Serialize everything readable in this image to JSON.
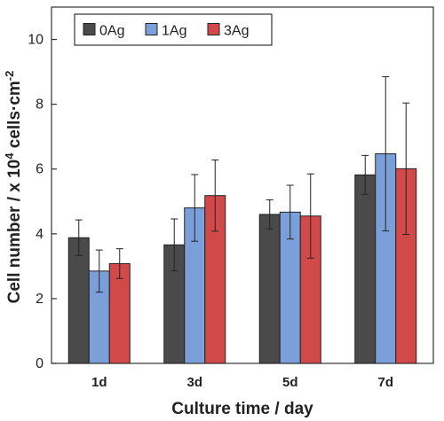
{
  "chart_data": {
    "type": "bar",
    "title": "",
    "xlabel": "Culture time / day",
    "ylabel_main": "Cell number / x 10",
    "ylabel_exp": "4",
    "ylabel_unit": " cells·cm",
    "ylabel_unit_exp": "-2",
    "ylim": [
      0,
      11
    ],
    "yticks": [
      0,
      2,
      4,
      6,
      8,
      10
    ],
    "categories": [
      "1d",
      "3d",
      "5d",
      "7d"
    ],
    "legend_position": "top-left",
    "series": [
      {
        "name": "0Ag",
        "color": "#4a4a4a",
        "values": [
          3.88,
          3.66,
          4.6,
          5.82
        ],
        "errors": [
          0.55,
          0.8,
          0.45,
          0.6
        ]
      },
      {
        "name": "1Ag",
        "color": "#7b9fd9",
        "values": [
          2.85,
          4.8,
          4.67,
          6.47
        ],
        "errors": [
          0.65,
          1.03,
          0.83,
          2.38
        ]
      },
      {
        "name": "3Ag",
        "color": "#d24949",
        "values": [
          3.08,
          5.18,
          4.55,
          6.01
        ],
        "errors": [
          0.46,
          1.1,
          1.3,
          2.03
        ]
      }
    ]
  }
}
